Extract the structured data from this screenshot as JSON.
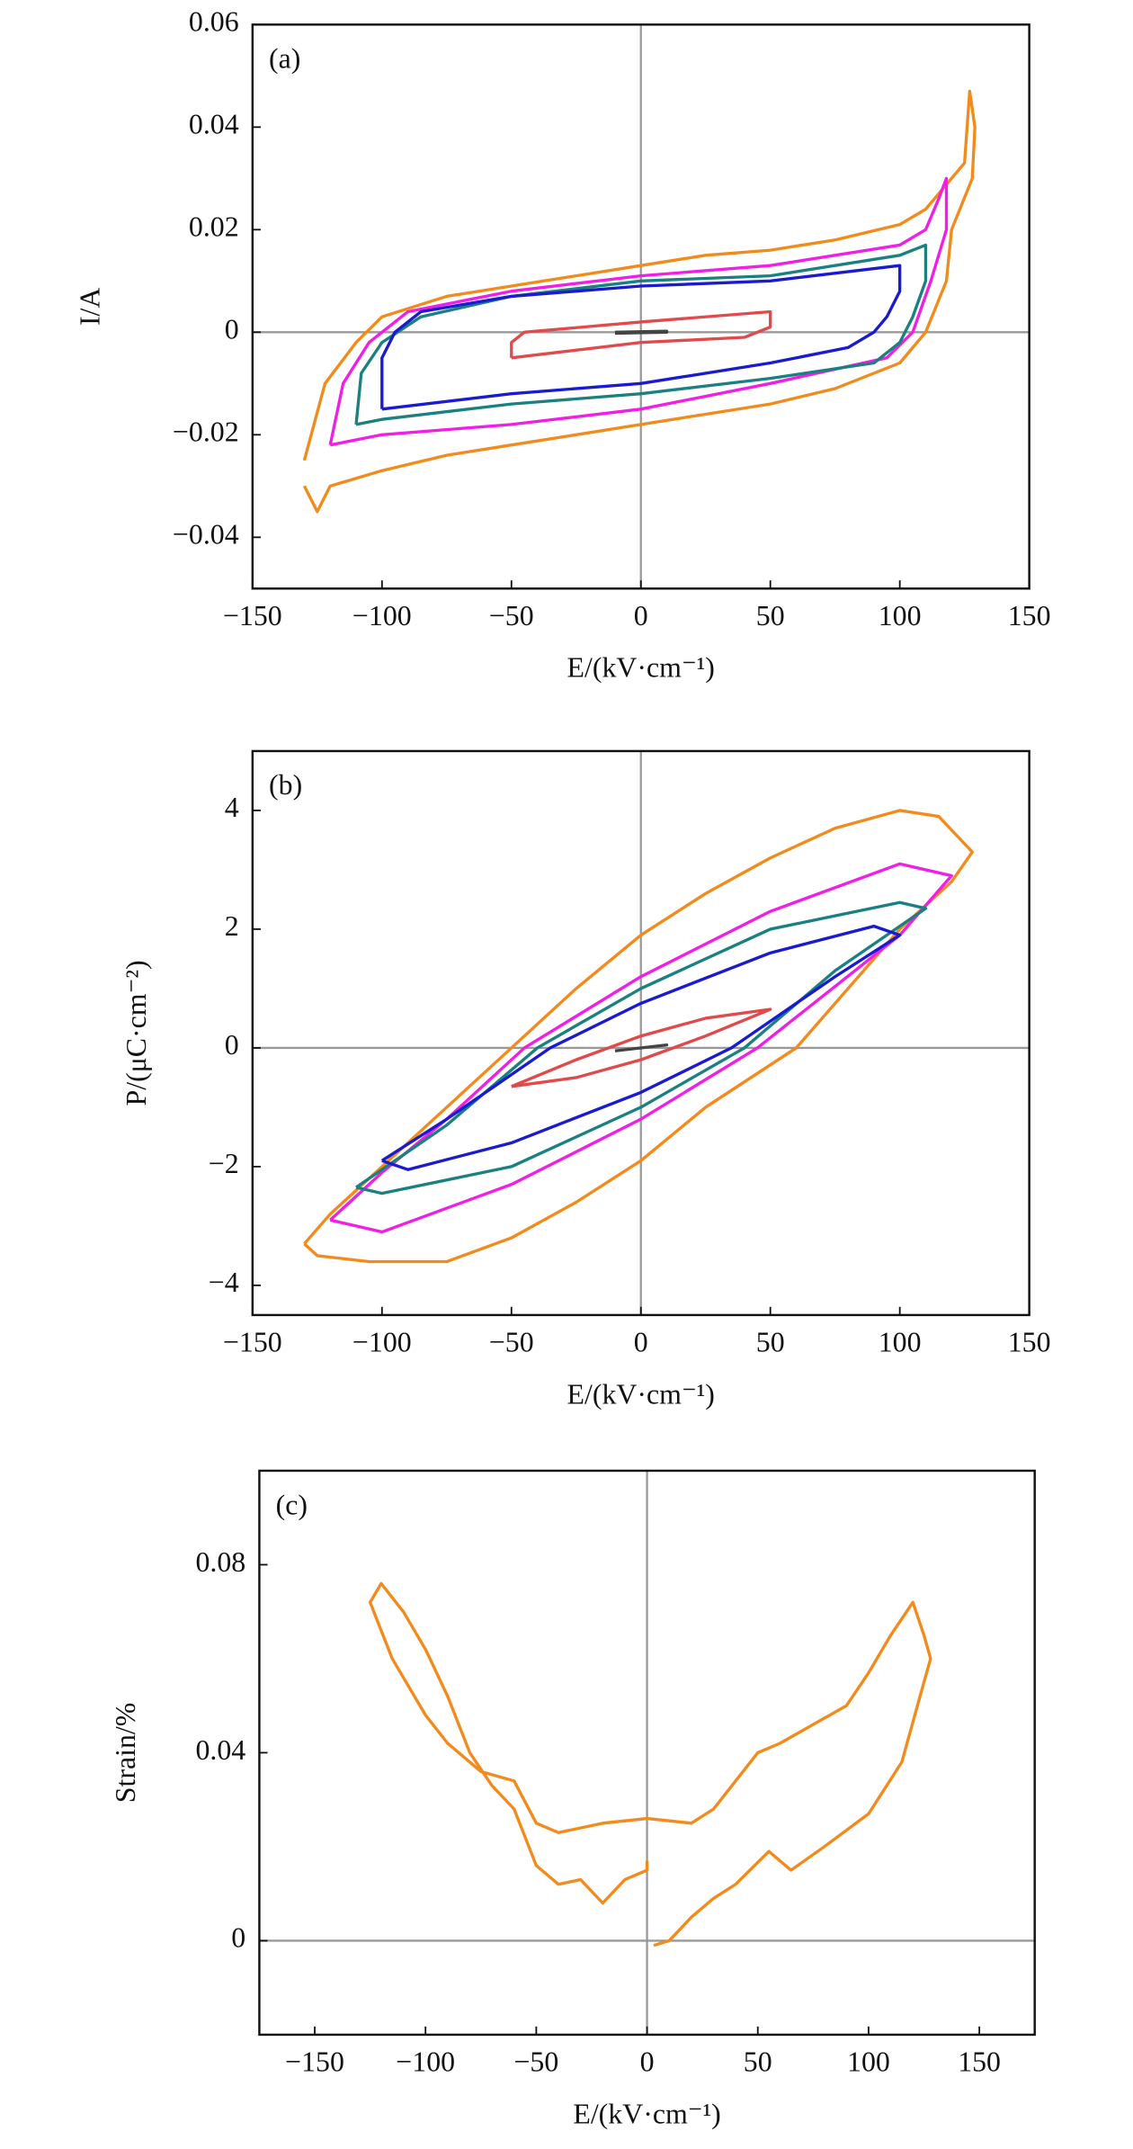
{
  "chart_data": [
    {
      "type": "line",
      "annotation": "(a)",
      "xlabel": "E/(kV·cm⁻¹)",
      "ylabel": "I/A",
      "xlim": [
        -150,
        150
      ],
      "ylim": [
        -0.05,
        0.06
      ],
      "xticks": [
        {
          "value": -150,
          "label": "−150"
        },
        {
          "value": -100,
          "label": "−100"
        },
        {
          "value": -50,
          "label": "−50"
        },
        0,
        50,
        100,
        150
      ],
      "yticks": [
        {
          "value": -0.04,
          "label": "−0.04"
        },
        {
          "value": -0.02,
          "label": "−0.02"
        },
        0,
        0.02,
        0.04,
        0.06
      ],
      "zero_lines": true,
      "series": [
        {
          "color": "#f28a1c",
          "x": [
            -130,
            -122,
            -110,
            -100,
            -75,
            -50,
            -25,
            0,
            25,
            50,
            75,
            100,
            110,
            120,
            125,
            127,
            129,
            128,
            120,
            118,
            110,
            100,
            75,
            50,
            25,
            0,
            -25,
            -50,
            -75,
            -100,
            -120,
            -125,
            -130
          ],
          "values": [
            -0.025,
            -0.01,
            -0.002,
            0.003,
            0.007,
            0.009,
            0.011,
            0.013,
            0.015,
            0.016,
            0.018,
            0.021,
            0.024,
            0.03,
            0.033,
            0.047,
            0.04,
            0.03,
            0.02,
            0.01,
            0,
            -0.006,
            -0.011,
            -0.014,
            -0.016,
            -0.018,
            -0.02,
            -0.022,
            -0.024,
            -0.027,
            -0.03,
            -0.035,
            -0.03
          ]
        },
        {
          "color": "#f01ee6",
          "x": [
            -120,
            -115,
            -105,
            -90,
            -50,
            0,
            50,
            100,
            110,
            115,
            118,
            118,
            112,
            105,
            95,
            50,
            0,
            -50,
            -100,
            -120
          ],
          "values": [
            -0.022,
            -0.01,
            -0.002,
            0.004,
            0.008,
            0.011,
            0.013,
            0.017,
            0.02,
            0.026,
            0.03,
            0.02,
            0.01,
            0,
            -0.005,
            -0.01,
            -0.015,
            -0.018,
            -0.02,
            -0.022
          ]
        },
        {
          "color": "#1a8080",
          "x": [
            -110,
            -108,
            -100,
            -85,
            -50,
            0,
            50,
            100,
            110,
            110,
            105,
            100,
            90,
            50,
            0,
            -50,
            -100,
            -110
          ],
          "values": [
            -0.018,
            -0.008,
            -0.002,
            0.003,
            0.007,
            0.01,
            0.011,
            0.015,
            0.017,
            0.01,
            0.003,
            -0.002,
            -0.006,
            -0.009,
            -0.012,
            -0.014,
            -0.017,
            -0.018
          ]
        },
        {
          "color": "#1a1ad0",
          "x": [
            -100,
            -100,
            -95,
            -85,
            -50,
            0,
            50,
            100,
            100,
            95,
            90,
            80,
            50,
            0,
            -50,
            -100
          ],
          "values": [
            -0.015,
            -0.005,
            0,
            0.004,
            0.007,
            0.009,
            0.01,
            0.013,
            0.008,
            0.003,
            0,
            -0.003,
            -0.006,
            -0.01,
            -0.012,
            -0.015
          ]
        },
        {
          "color": "#e04a4a",
          "x": [
            -50,
            -50,
            -45,
            0,
            50,
            50,
            40,
            0,
            -50
          ],
          "values": [
            -0.005,
            -0.002,
            0,
            0.002,
            0.004,
            0.001,
            -0.001,
            -0.002,
            -0.005
          ]
        },
        {
          "color": "#444444",
          "x": [
            -10,
            10,
            10,
            -10
          ],
          "values": [
            0,
            0.0002,
            0,
            -0.0002
          ]
        }
      ]
    },
    {
      "type": "line",
      "annotation": "(b)",
      "xlabel": "E/(kV·cm⁻¹)",
      "ylabel": "P/(μC·cm⁻²)",
      "xlim": [
        -150,
        150
      ],
      "ylim": [
        -4.5,
        5
      ],
      "xticks": [
        {
          "value": -150,
          "label": "−150"
        },
        {
          "value": -100,
          "label": "−100"
        },
        {
          "value": -50,
          "label": "−50"
        },
        0,
        50,
        100,
        150
      ],
      "yticks": [
        {
          "value": -4,
          "label": "−4"
        },
        {
          "value": -2,
          "label": "−2"
        },
        0,
        2,
        4
      ],
      "zero_lines": true,
      "series": [
        {
          "color": "#f28a1c",
          "x": [
            -130,
            -120,
            -100,
            -75,
            -50,
            -25,
            0,
            25,
            50,
            75,
            100,
            115,
            128,
            120,
            100,
            60,
            25,
            0,
            -25,
            -50,
            -75,
            -105,
            -125,
            -130
          ],
          "values": [
            -3.3,
            -2.8,
            -2.0,
            -1.0,
            0,
            1.0,
            1.9,
            2.6,
            3.2,
            3.7,
            4.0,
            3.9,
            3.3,
            2.8,
            2.0,
            0,
            -1.0,
            -1.9,
            -2.6,
            -3.2,
            -3.6,
            -3.6,
            -3.5,
            -3.3
          ]
        },
        {
          "color": "#f01ee6",
          "x": [
            -120,
            -100,
            -75,
            -45,
            0,
            50,
            100,
            120,
            100,
            45,
            0,
            -50,
            -100,
            -120
          ],
          "values": [
            -2.9,
            -2.1,
            -1.2,
            0,
            1.2,
            2.3,
            3.1,
            2.9,
            1.9,
            0,
            -1.2,
            -2.3,
            -3.1,
            -2.9
          ]
        },
        {
          "color": "#1a8080",
          "x": [
            -110,
            -75,
            -40,
            0,
            50,
            100,
            110,
            75,
            40,
            0,
            -50,
            -100,
            -110
          ],
          "values": [
            -2.35,
            -1.3,
            0,
            1.0,
            2.0,
            2.45,
            2.35,
            1.3,
            0,
            -1.0,
            -2.0,
            -2.45,
            -2.35
          ]
        },
        {
          "color": "#1a1ad0",
          "x": [
            -100,
            -75,
            -35,
            0,
            50,
            90,
            100,
            75,
            35,
            0,
            -50,
            -90,
            -100
          ],
          "values": [
            -1.9,
            -1.2,
            0,
            0.75,
            1.6,
            2.05,
            1.9,
            1.2,
            0,
            -0.75,
            -1.6,
            -2.05,
            -1.9
          ]
        },
        {
          "color": "#e04a4a",
          "x": [
            -50,
            -25,
            0,
            25,
            50,
            25,
            0,
            -25,
            -50
          ],
          "values": [
            -0.65,
            -0.2,
            0.2,
            0.5,
            0.65,
            0.2,
            -0.2,
            -0.5,
            -0.65
          ]
        },
        {
          "color": "#444444",
          "x": [
            -10,
            10,
            -10
          ],
          "values": [
            -0.05,
            0.05,
            -0.05
          ]
        }
      ]
    },
    {
      "type": "line",
      "annotation": "(c)",
      "xlabel": "E/(kV·cm⁻¹)",
      "ylabel": "Strain/%",
      "xlim": [
        -175,
        175
      ],
      "ylim": [
        -0.02,
        0.1
      ],
      "xticks": [
        {
          "value": -150,
          "label": "−150"
        },
        {
          "value": -100,
          "label": "−100"
        },
        {
          "value": -50,
          "label": "−50"
        },
        0,
        50,
        100,
        150
      ],
      "yticks": [
        0,
        0.04,
        0.08
      ],
      "zero_lines": true,
      "series": [
        {
          "color": "#f28a1c",
          "x": [
            3,
            10,
            20,
            30,
            40,
            55,
            65,
            80,
            100,
            115,
            125,
            128,
            125,
            120,
            110,
            100,
            90,
            75,
            60,
            50,
            30,
            20,
            0,
            -20,
            -40,
            -50,
            -60,
            -75,
            -90,
            -100,
            -115,
            -125,
            -120,
            -110,
            -100,
            -90,
            -80,
            -70,
            -60,
            -50,
            -40,
            -30,
            -20,
            -10,
            0,
            0
          ],
          "values": [
            -0.001,
            0,
            0.005,
            0.009,
            0.012,
            0.019,
            0.015,
            0.02,
            0.027,
            0.038,
            0.055,
            0.06,
            0.065,
            0.072,
            0.065,
            0.057,
            0.05,
            0.046,
            0.042,
            0.04,
            0.028,
            0.025,
            0.026,
            0.025,
            0.023,
            0.025,
            0.034,
            0.036,
            0.042,
            0.048,
            0.06,
            0.072,
            0.076,
            0.07,
            0.062,
            0.052,
            0.04,
            0.033,
            0.028,
            0.016,
            0.012,
            0.013,
            0.008,
            0.013,
            0.015,
            0.017
          ]
        }
      ]
    }
  ]
}
